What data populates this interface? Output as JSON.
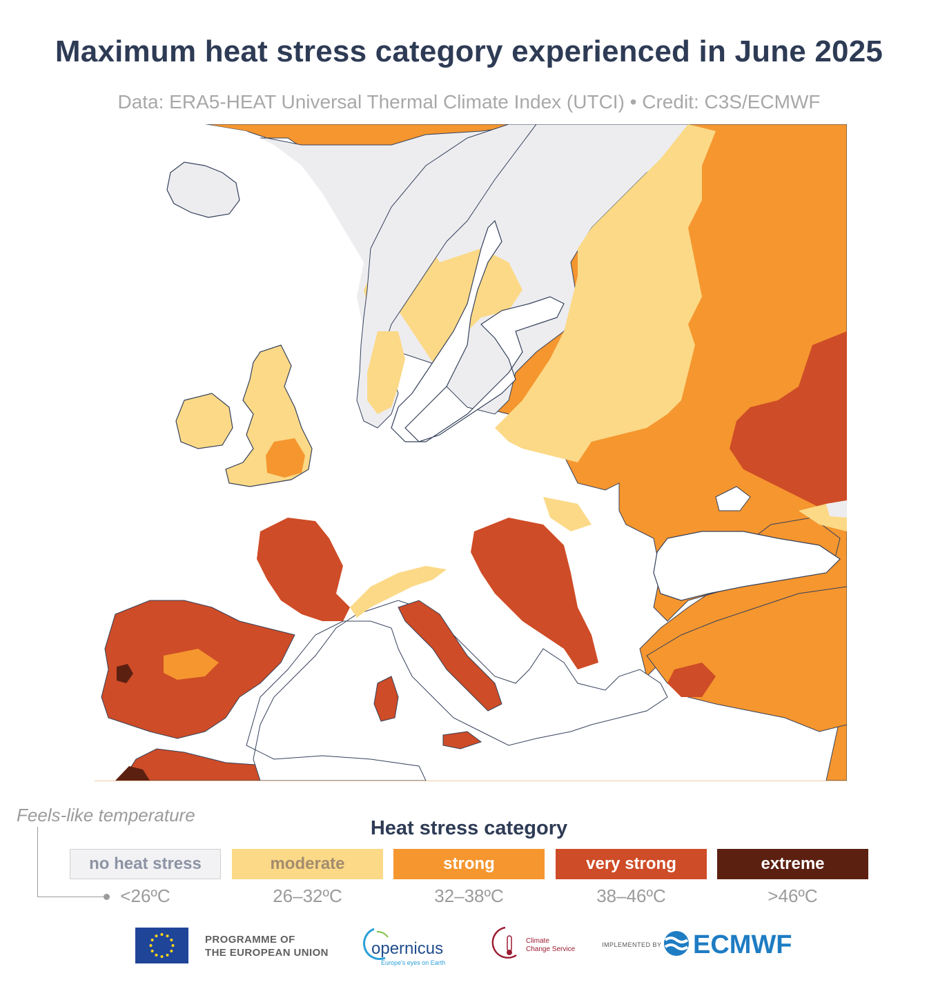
{
  "title": "Maximum heat stress category experienced in June 2025",
  "subtitle": "Data: ERA5-HEAT Universal Thermal Climate Index (UTCI) • Credit: C3S/ECMWF",
  "map": {
    "region": "Europe",
    "colors": {
      "sea": "#ffffff",
      "no_heat_stress": "#ededf0",
      "moderate": "#fbd987",
      "strong": "#f5962f",
      "very_strong": "#ce4c27",
      "extreme": "#5c2011",
      "coastline": "#34405a"
    }
  },
  "legend": {
    "axis_note": "Feels-like temperature",
    "title": "Heat stress category",
    "categories": [
      {
        "label": "no heat stress",
        "range": "<26ºC",
        "color": "#f2f2f4",
        "text_color": "#8c93a3"
      },
      {
        "label": "moderate",
        "range": "26–32ºC",
        "color": "#fbd987",
        "text_color": "#a38c6e"
      },
      {
        "label": "strong",
        "range": "32–38ºC",
        "color": "#f5962f",
        "text_color": "#ffffff"
      },
      {
        "label": "very strong",
        "range": "38–46ºC",
        "color": "#ce4c27",
        "text_color": "#ffffff"
      },
      {
        "label": "extreme",
        "range": ">46ºC",
        "color": "#5c2011",
        "text_color": "#ffffff"
      }
    ]
  },
  "footer": {
    "eu_line1": "PROGRAMME OF",
    "eu_line2": "THE EUROPEAN UNION",
    "copernicus_name": "opernicus",
    "copernicus_tagline": "Europe's eyes on Earth",
    "c3s_line1": "Climate",
    "c3s_line2": "Change Service",
    "implemented_by": "IMPLEMENTED BY",
    "ecmwf": "ECMWF"
  }
}
